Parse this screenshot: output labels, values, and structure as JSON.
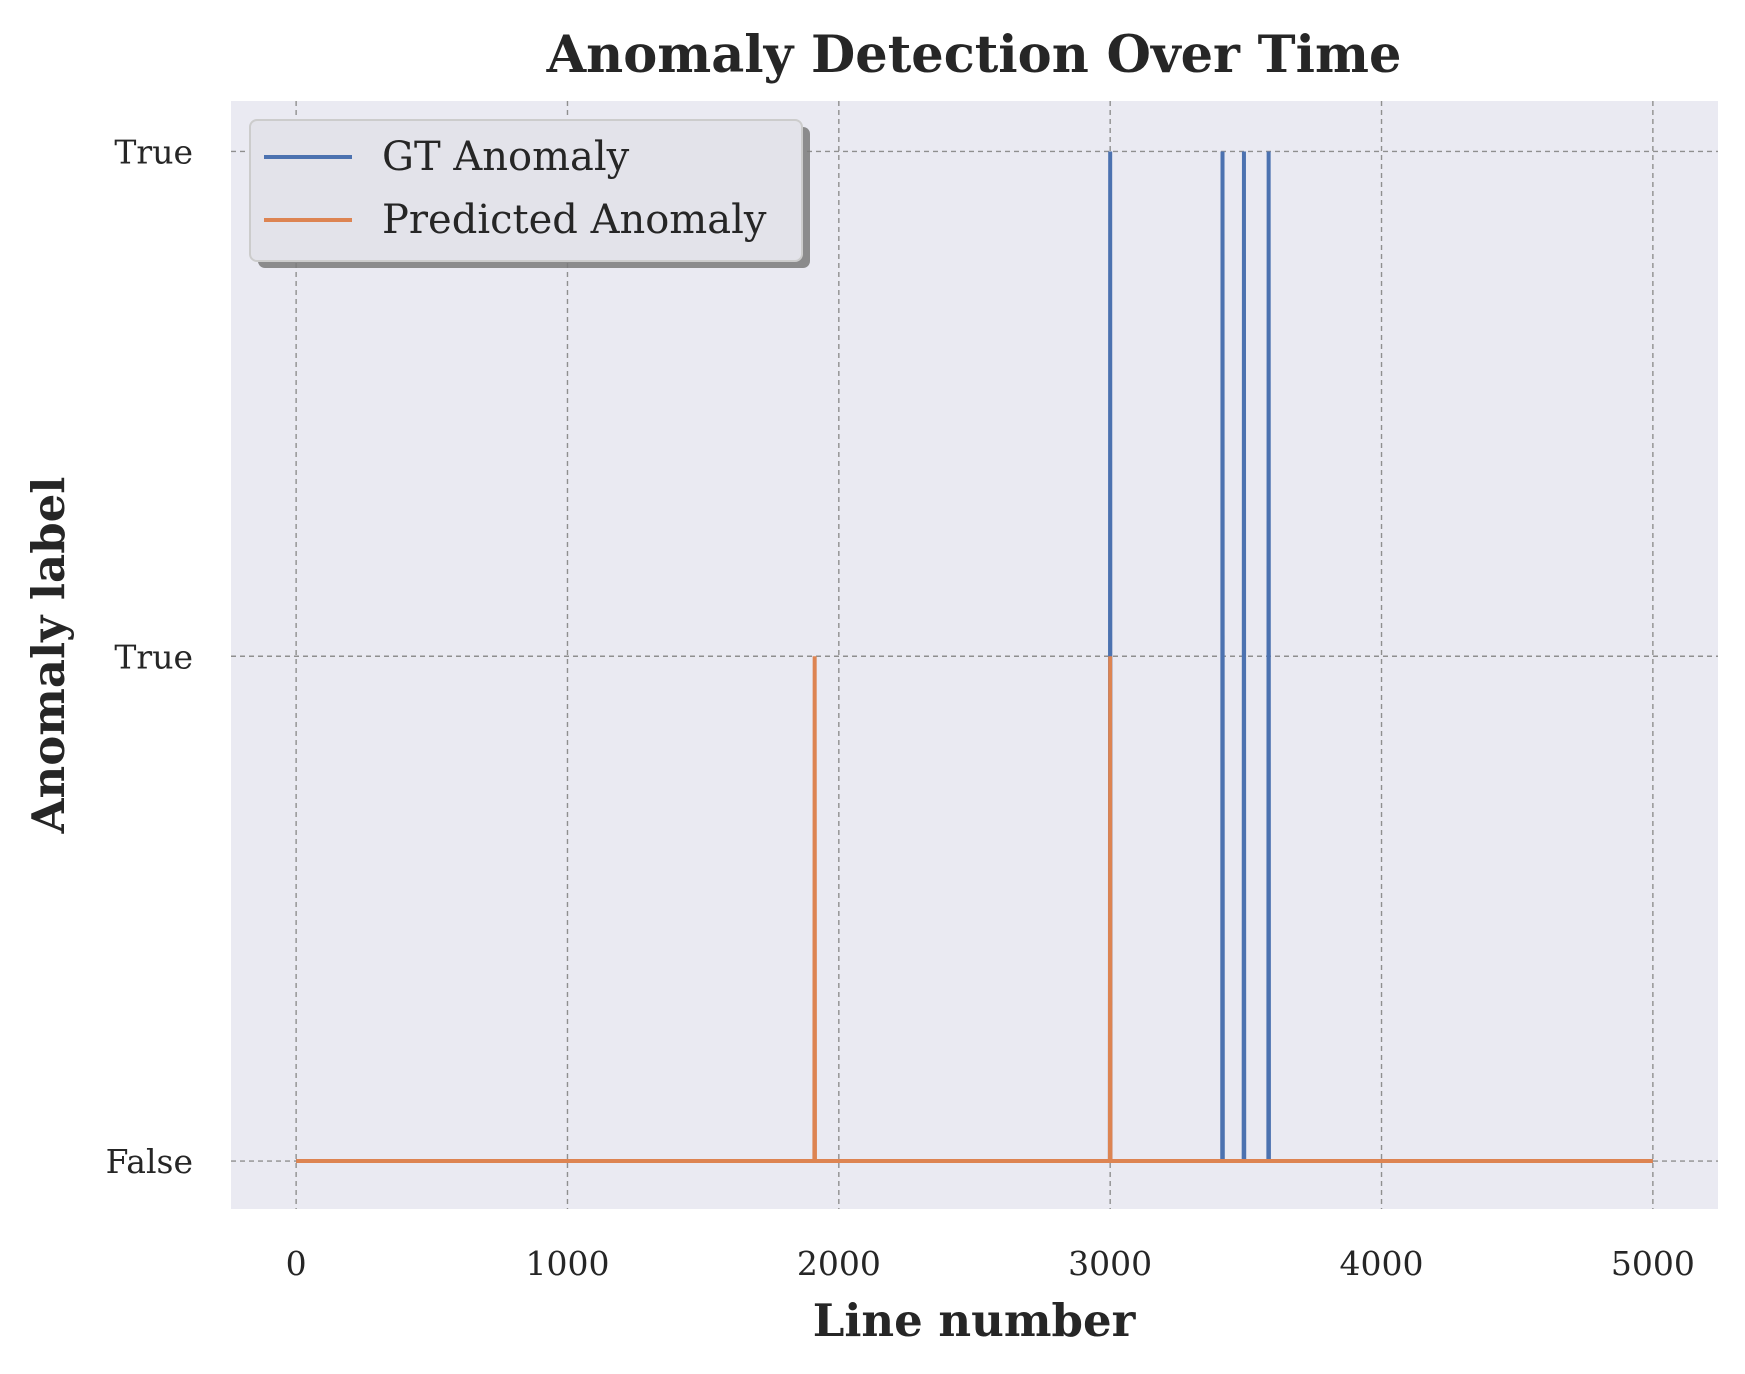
{
  "chart_data": {
    "type": "line",
    "title": "Anomaly Detection Over Time",
    "xlabel": "Line number",
    "ylabel": "Anomaly label",
    "xlim": [
      -240,
      5240
    ],
    "ylim": [
      -0.095,
      2.1
    ],
    "x_ticks": [
      0,
      1000,
      2000,
      3000,
      4000,
      5000
    ],
    "y_ticks": [
      {
        "value": 0,
        "label": "False"
      },
      {
        "value": 1,
        "label": "True"
      },
      {
        "value": 2,
        "label": "True"
      }
    ],
    "grid": true,
    "legend_position": "top-left",
    "series": [
      {
        "name": "GT Anomaly",
        "color": "#4c72b0",
        "x": [
          0,
          2999,
          3000,
          3001,
          3413,
          3414,
          3415,
          3492,
          3493,
          3494,
          3583,
          3584,
          3585,
          5000
        ],
        "y": [
          0,
          0,
          2,
          0,
          0,
          2,
          0,
          0,
          2,
          0,
          0,
          2,
          0,
          0
        ]
      },
      {
        "name": "Predicted Anomaly",
        "color": "#dd8452",
        "x": [
          0,
          1910,
          1911,
          1912,
          2999,
          3000,
          3001,
          5000
        ],
        "y": [
          0,
          0,
          1,
          0,
          0,
          1,
          0,
          0
        ]
      }
    ]
  }
}
